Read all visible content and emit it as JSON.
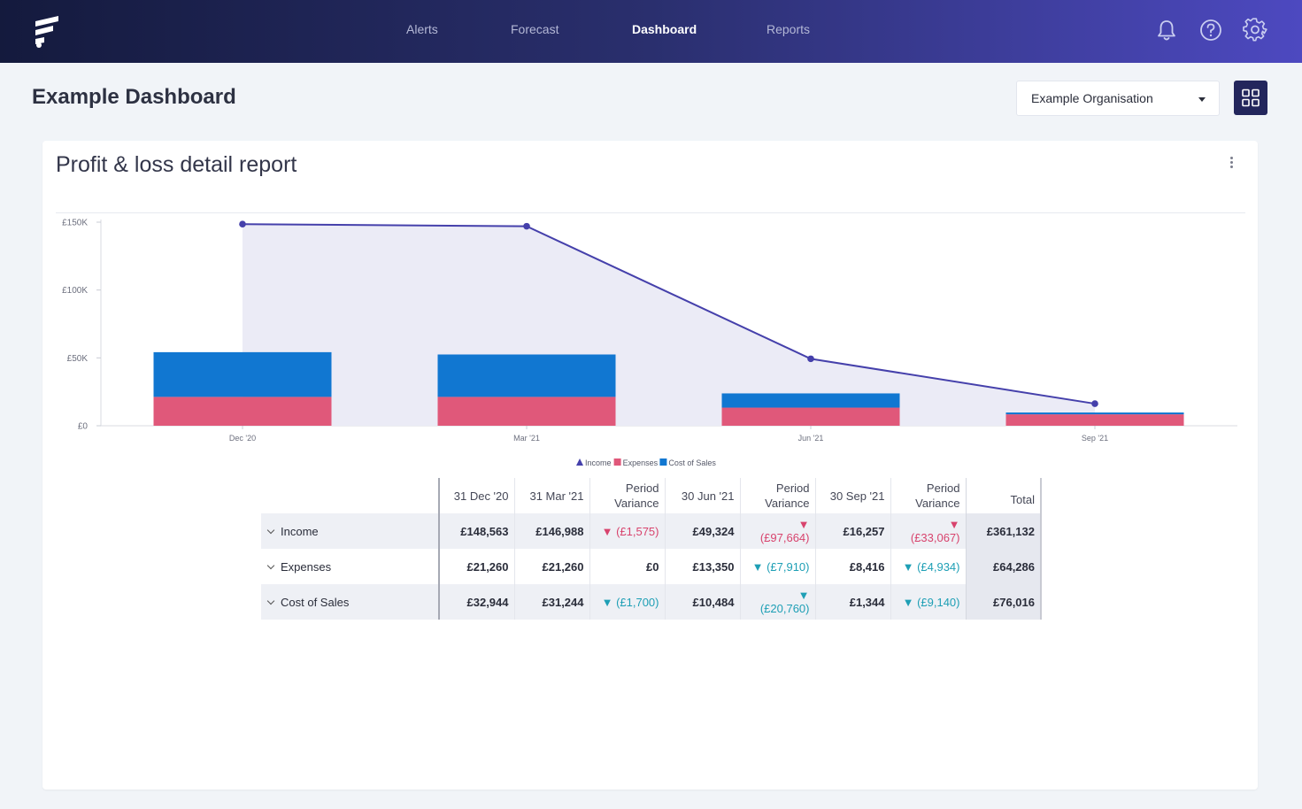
{
  "nav": {
    "items": [
      {
        "label": "Alerts"
      },
      {
        "label": "Forecast"
      },
      {
        "label": "Dashboard"
      },
      {
        "label": "Reports"
      }
    ],
    "active": "Dashboard"
  },
  "header": {
    "title": "Example Dashboard",
    "org_select": "Example Organisation"
  },
  "card": {
    "title": "Profit & loss detail report"
  },
  "colors": {
    "income": "#4540ab",
    "income_fill": "#ebebf6",
    "expenses": "#e0587a",
    "cost_of_sales": "#1177d1"
  },
  "chart_data": {
    "type": "bar",
    "categories": [
      "Dec '20",
      "Mar '21",
      "Jun '21",
      "Sep '21"
    ],
    "ytick_labels": [
      "£0",
      "£50K",
      "£100K",
      "£150K"
    ],
    "yticks": [
      0,
      50000,
      100000,
      150000
    ],
    "ylim": [
      0,
      150000
    ],
    "series": [
      {
        "name": "Income",
        "type": "area",
        "values": [
          148563,
          146988,
          49324,
          16257
        ]
      },
      {
        "name": "Expenses",
        "type": "stacked-bar",
        "values": [
          21260,
          21260,
          13350,
          8416
        ]
      },
      {
        "name": "Cost of Sales",
        "type": "stacked-bar",
        "values": [
          32944,
          31244,
          10484,
          1344
        ]
      }
    ],
    "legend": [
      "Income",
      "Expenses",
      "Cost of Sales"
    ],
    "legend_position": "bottom-center"
  },
  "table": {
    "headers": {
      "c1": "31 Dec '20",
      "c2": "31 Mar '21",
      "v1a": "Period",
      "v1b": "Variance",
      "c3": "30 Jun '21",
      "v2a": "Period",
      "v2b": "Variance",
      "c4": "30 Sep '21",
      "v3a": "Period",
      "v3b": "Variance",
      "total": "Total"
    },
    "rows": [
      {
        "label": "Income",
        "c1": "£148,563",
        "c2": "£146,988",
        "v1": "▼ (£1,575)",
        "c3": "£49,324",
        "v2": "▼ (£97,664)",
        "c4": "£16,257",
        "v3": "▼ (£33,067)",
        "total": "£361,132"
      },
      {
        "label": "Expenses",
        "c1": "£21,260",
        "c2": "£21,260",
        "v1": "£0",
        "c3": "£13,350",
        "v2": "▼ (£7,910)",
        "c4": "£8,416",
        "v3": "▼ (£4,934)",
        "total": "£64,286"
      },
      {
        "label": "Cost of Sales",
        "c1": "£32,944",
        "c2": "£31,244",
        "v1": "▼ (£1,700)",
        "c3": "£10,484",
        "v2": "▼ (£20,760)",
        "c4": "£1,344",
        "v3": "▼ (£9,140)",
        "total": "£76,016"
      }
    ]
  }
}
